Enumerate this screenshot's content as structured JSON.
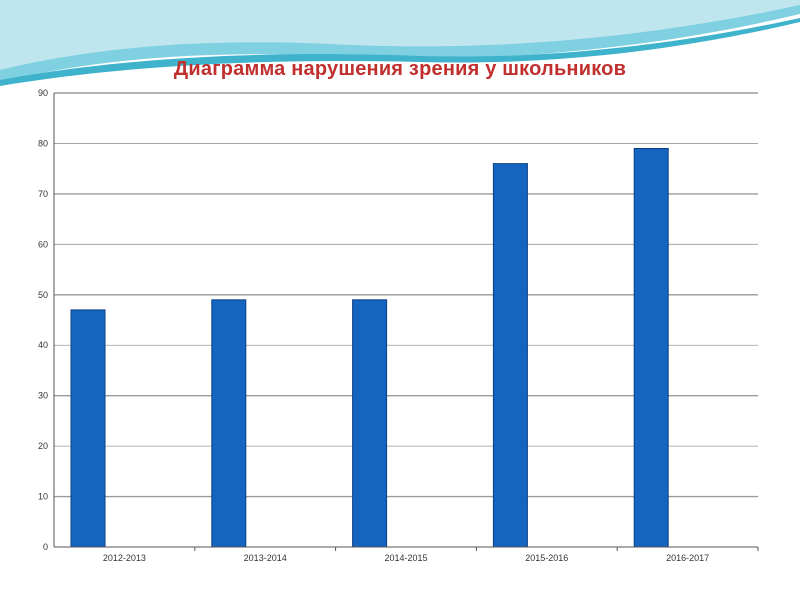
{
  "colors": {
    "bar": "#1565c0",
    "bar_edge": "#0d3f85",
    "grid": "#9a9a9a",
    "title": "#c0302f",
    "wave_light": "#bfe6ef",
    "wave_mid": "#7fd0e0",
    "wave_dark": "#3fb3cc"
  },
  "chart_data": {
    "type": "bar",
    "title": "Диаграмма нарушения зрения у школьников",
    "categories": [
      "2012-2013",
      "2013-2014",
      "2014-2015",
      "2015-2016",
      "2016-2017"
    ],
    "values": [
      47,
      49,
      49,
      76,
      79
    ],
    "ylim": [
      0,
      90
    ],
    "yticks": [
      0,
      10,
      20,
      30,
      40,
      50,
      60,
      70,
      80,
      90
    ],
    "xlabel": "",
    "ylabel": "",
    "grid": true,
    "legend": "none"
  }
}
